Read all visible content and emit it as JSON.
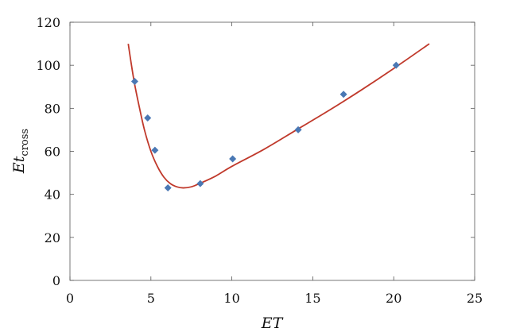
{
  "chart_data": {
    "type": "scatter",
    "title": "",
    "xlabel": "ET",
    "ylabel": {
      "main": "Et",
      "subscript": "cross"
    },
    "xlim": [
      0,
      25
    ],
    "ylim": [
      0,
      120
    ],
    "xticks": [
      0,
      5,
      10,
      15,
      20,
      25
    ],
    "yticks": [
      0,
      20,
      40,
      60,
      80,
      100,
      120
    ],
    "grid": false,
    "legend": "none",
    "series": [
      {
        "kind": "points",
        "marker": "diamond",
        "color": "#4a78b4",
        "points": [
          {
            "x": 4.0,
            "y": 92.5
          },
          {
            "x": 4.8,
            "y": 75.5
          },
          {
            "x": 5.25,
            "y": 60.5
          },
          {
            "x": 6.05,
            "y": 43.0
          },
          {
            "x": 8.05,
            "y": 45.0
          },
          {
            "x": 10.05,
            "y": 56.5
          },
          {
            "x": 14.1,
            "y": 70.0
          },
          {
            "x": 16.9,
            "y": 86.5
          },
          {
            "x": 20.15,
            "y": 100.0
          }
        ]
      },
      {
        "kind": "curve",
        "color": "#c0392b",
        "points": [
          {
            "x": 3.6,
            "y": 110.0
          },
          {
            "x": 3.8,
            "y": 100.0
          },
          {
            "x": 4.0,
            "y": 91.0
          },
          {
            "x": 4.3,
            "y": 80.0
          },
          {
            "x": 4.6,
            "y": 70.0
          },
          {
            "x": 5.0,
            "y": 60.0
          },
          {
            "x": 5.4,
            "y": 53.0
          },
          {
            "x": 5.8,
            "y": 48.0
          },
          {
            "x": 6.2,
            "y": 45.0
          },
          {
            "x": 6.6,
            "y": 43.5
          },
          {
            "x": 7.0,
            "y": 43.0
          },
          {
            "x": 7.5,
            "y": 43.5
          },
          {
            "x": 8.0,
            "y": 45.0
          },
          {
            "x": 9.0,
            "y": 48.5
          },
          {
            "x": 10.0,
            "y": 53.0
          },
          {
            "x": 12.0,
            "y": 61.0
          },
          {
            "x": 14.0,
            "y": 70.0
          },
          {
            "x": 16.0,
            "y": 79.0
          },
          {
            "x": 18.0,
            "y": 88.5
          },
          {
            "x": 20.0,
            "y": 98.5
          },
          {
            "x": 22.2,
            "y": 110.0
          }
        ]
      }
    ]
  }
}
